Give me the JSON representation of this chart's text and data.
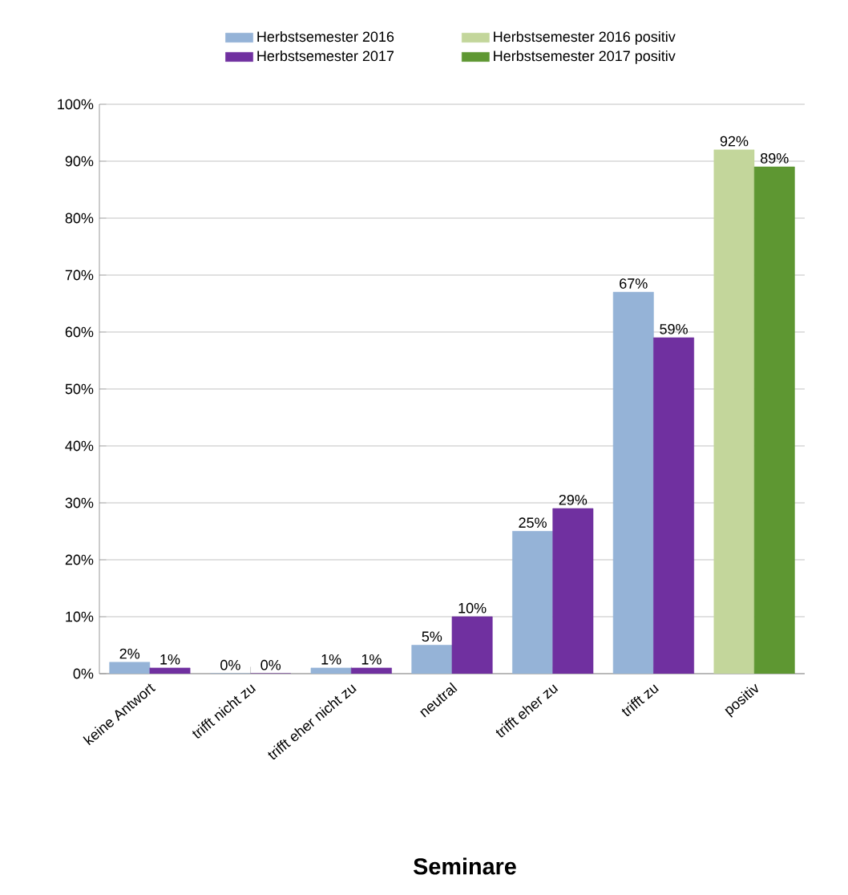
{
  "chart_data": {
    "type": "bar",
    "title": "Seminare",
    "categories": [
      "keine Antwort",
      "trifft nicht zu",
      "trifft eher nicht zu",
      "neutral",
      "trifft eher zu",
      "trifft zu",
      "positiv"
    ],
    "series": [
      {
        "name": "Herbstsemester 2016",
        "color": "#95b3d7",
        "values": [
          2,
          0,
          1,
          5,
          25,
          67,
          null
        ],
        "value_labels": [
          "2%",
          "0%",
          "1%",
          "5%",
          "25%",
          "67%",
          null
        ]
      },
      {
        "name": "Herbstsemester 2017",
        "color": "#7030a0",
        "values": [
          1,
          0,
          1,
          10,
          29,
          59,
          null
        ],
        "value_labels": [
          "1%",
          "0%",
          "1%",
          "10%",
          "29%",
          "59%",
          null
        ]
      },
      {
        "name": "Herbstsemester 2016 positiv",
        "color": "#c3d69b",
        "values": [
          null,
          null,
          null,
          null,
          null,
          null,
          92
        ],
        "value_labels": [
          null,
          null,
          null,
          null,
          null,
          null,
          "92%"
        ]
      },
      {
        "name": "Herbstsemester 2017 positiv",
        "color": "#5e9732",
        "values": [
          null,
          null,
          null,
          null,
          null,
          null,
          89
        ],
        "value_labels": [
          null,
          null,
          null,
          null,
          null,
          null,
          "89%"
        ]
      }
    ],
    "ylim": [
      0,
      100
    ],
    "yticks": [
      {
        "value": 0,
        "label": "0%"
      },
      {
        "value": 10,
        "label": "10%"
      },
      {
        "value": 20,
        "label": "20%"
      },
      {
        "value": 30,
        "label": "30%"
      },
      {
        "value": 40,
        "label": "40%"
      },
      {
        "value": 50,
        "label": "50%"
      },
      {
        "value": 60,
        "label": "60%"
      },
      {
        "value": 70,
        "label": "70%"
      },
      {
        "value": 80,
        "label": "80%"
      },
      {
        "value": 90,
        "label": "90%"
      },
      {
        "value": 100,
        "label": "100%"
      }
    ],
    "grid": "y",
    "legend": "top"
  }
}
